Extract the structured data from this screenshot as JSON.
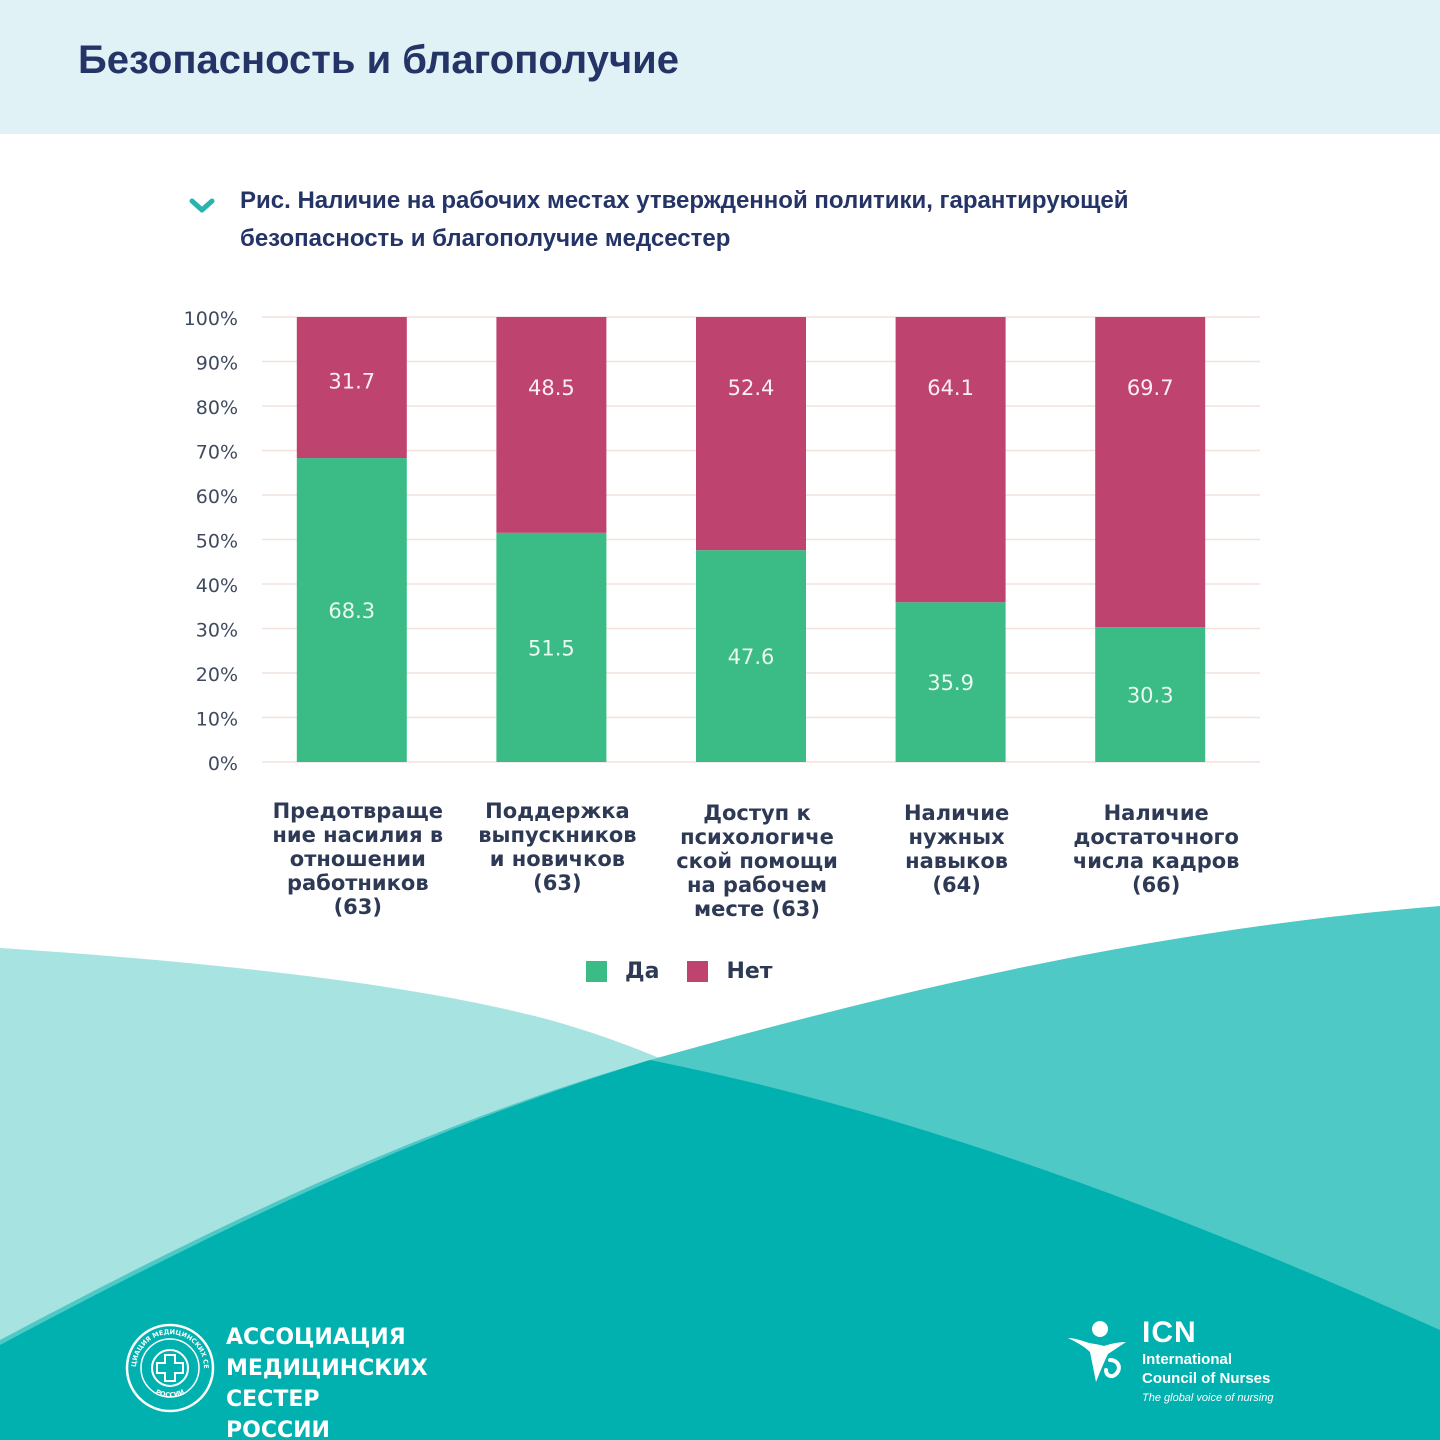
{
  "page": {
    "title": "Безопасность и благополучие",
    "caption": "Рис. Наличие на рабочих местах утвержденной политики, гарантирующей безопасность и благополучие медсестер",
    "caption_icon": "chevron-down-icon"
  },
  "colors": {
    "header_band": "#e1f2f7",
    "title_text": "#253466",
    "yes": "#3bbb85",
    "no": "#be446f",
    "teal_light": "#a6e3e1",
    "teal_mid": "#4ec9c6",
    "teal_dark": "#00b1b0"
  },
  "chart_data": {
    "type": "bar",
    "stacked": true,
    "categories": [
      "Предотвраще ние насилия в отношении работников (63)",
      "Поддержка выпускников и новичков (63)",
      "Доступ к психологиче ской помощи на рабочем месте (63)",
      "Наличие нужных навыков (64)",
      "Наличие достаточного числа кадров (66)"
    ],
    "category_lines": [
      [
        "Предотвраще",
        "ние насилия в",
        "отношении",
        "работников",
        "(63)"
      ],
      [
        "Поддержка",
        "выпускников",
        "и новичков",
        "(63)"
      ],
      [
        "Доступ к",
        "психологиче",
        "ской помощи",
        "на рабочем",
        "месте (63)"
      ],
      [
        "Наличие",
        "нужных",
        "навыков",
        "(64)"
      ],
      [
        "Наличие",
        "достаточного",
        "числа кадров",
        "(66)"
      ]
    ],
    "series": [
      {
        "name": "Да",
        "values": [
          68.3,
          51.5,
          47.6,
          35.9,
          30.3
        ],
        "color": "#3bbb85"
      },
      {
        "name": "Нет",
        "values": [
          31.7,
          48.5,
          52.4,
          64.1,
          69.7
        ],
        "color": "#be446f"
      }
    ],
    "value_labels": [
      [
        "68.3",
        "51.5",
        "47.6",
        "35.9",
        "30.3"
      ],
      [
        "31.7",
        "48.5",
        "52.4",
        "64.1",
        "69.7"
      ]
    ],
    "yticks": [
      "0%",
      "10%",
      "20%",
      "30%",
      "40%",
      "50%",
      "60%",
      "70%",
      "80%",
      "90%",
      "100%"
    ],
    "ylim": [
      0,
      100
    ],
    "grid": true,
    "legend": "bottom-center",
    "title": "",
    "xlabel": "",
    "ylabel": ""
  },
  "footer": {
    "org_name": "АССОЦИАЦИЯ\nМЕДИЦИНСКИХ СЕСТЕР\nРОССИИ",
    "org_seal_top_text": "АССОЦИАЦИЯ МЕДИЦИНСКИХ СЕСТЕР",
    "org_seal_bottom_text": "РОССИИ",
    "org_seal_icon": "medical-cross-seal-icon",
    "icn_abbr": "ICN",
    "icn_name": "International\nCouncil of Nurses",
    "icn_tagline": "The global voice of nursing",
    "icn_icon": "nurse-figure-icon"
  }
}
